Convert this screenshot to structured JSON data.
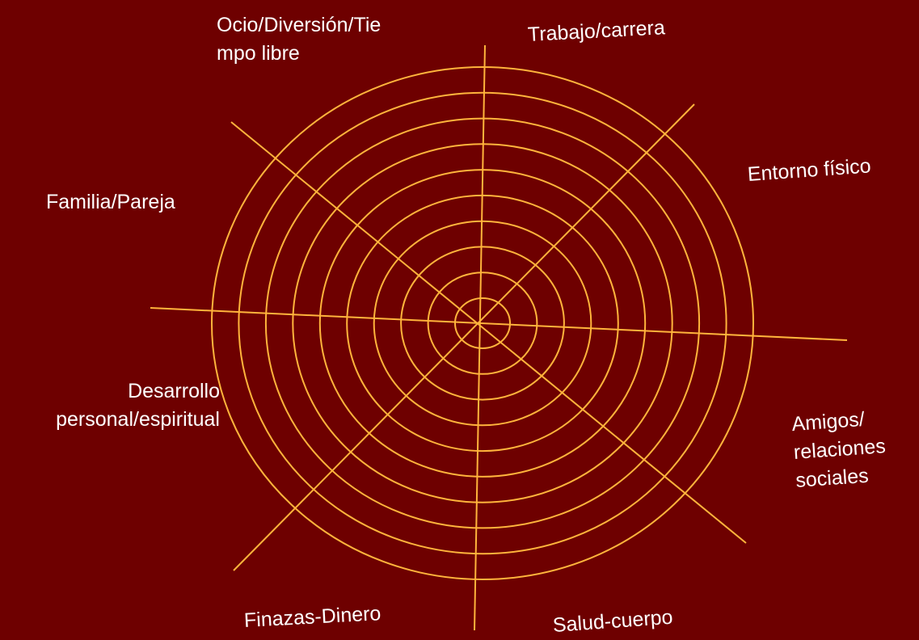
{
  "wheel": {
    "ring_count": 10,
    "spoke_count": 8,
    "line_color": "#ffb43c",
    "background_color": "#6e0000"
  },
  "labels": {
    "ocio": [
      "Ocio/Diversión/Tie",
      "mpo libre"
    ],
    "trabajo": "Trabajo/carrera",
    "entorno": "Entorno físico",
    "familia": "Familia/Pareja",
    "desarrollo": [
      "Desarrollo",
      "personal/espiritual"
    ],
    "amigos": [
      "Amigos/",
      "relaciones",
      "sociales"
    ],
    "finanzas": "Finazas-Dinero",
    "salud": "Salud-cuerpo"
  }
}
